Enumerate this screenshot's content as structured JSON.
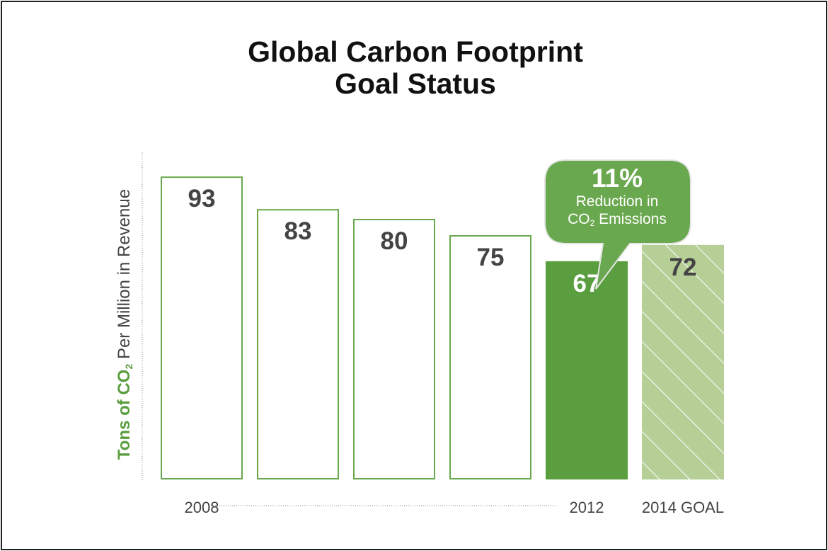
{
  "chart_data": {
    "type": "bar",
    "title": "Global Carbon Footprint Goal Status",
    "title_lines": [
      "Global Carbon Footprint",
      "Goal Status"
    ],
    "ylabel": {
      "bold": "Tons of CO",
      "bold_sub": "2",
      "rest": " Per Million in Revenue"
    },
    "categories": [
      "2008",
      "",
      "",
      "",
      "2012",
      "2014 GOAL"
    ],
    "values": [
      93,
      83,
      80,
      75,
      67,
      72
    ],
    "value_labels": [
      "93",
      "83",
      "80",
      "75",
      "67",
      "72"
    ],
    "bar_styles": [
      "outline",
      "outline",
      "outline",
      "outline",
      "solid",
      "hatched"
    ],
    "ylim": [
      0,
      100
    ],
    "grid": false,
    "annotation": {
      "value": "11%",
      "line1": "Reduction in",
      "line2_pre": "CO",
      "line2_sub": "2",
      "line2_post": " Emissions"
    },
    "colors": {
      "accent": "#5a9e3f",
      "outline": "#6aa84f",
      "goal": "#b5cf96",
      "goal_hatch": "#ffffff",
      "label_dark": "#444444",
      "callout": "#6aa84f"
    }
  }
}
